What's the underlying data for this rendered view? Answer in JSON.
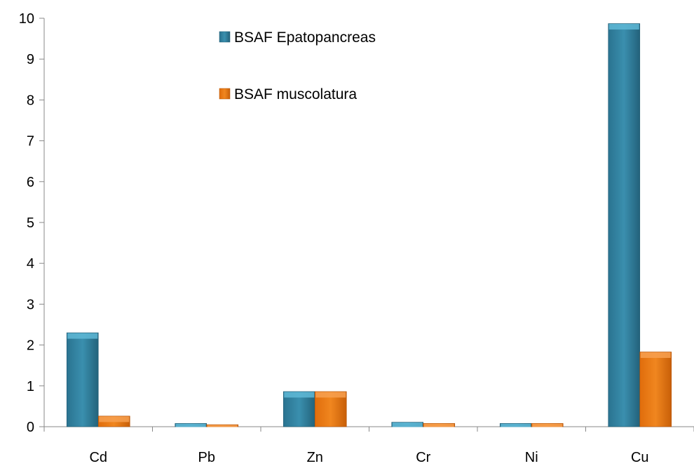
{
  "chart_data": {
    "type": "bar",
    "title": "",
    "xlabel": "",
    "ylabel": "",
    "categories": [
      "Cd",
      "Pb",
      "Zn",
      "Cr",
      "Ni",
      "Cu"
    ],
    "series": [
      {
        "name": "BSAF Epatopancreas",
        "values": [
          2.3,
          0.08,
          0.86,
          0.11,
          0.08,
          9.87
        ],
        "color": "#2E7F9E",
        "highlight": "#5FB8D6"
      },
      {
        "name": "BSAF muscolatura",
        "values": [
          0.26,
          0.05,
          0.86,
          0.08,
          0.08,
          1.83
        ],
        "color": "#E87511",
        "highlight": "#F7A050"
      }
    ],
    "ylim": [
      0,
      10
    ],
    "yticks": [
      0,
      1,
      2,
      3,
      4,
      5,
      6,
      7,
      8,
      9,
      10
    ],
    "grid": false,
    "legend_position": "top-center"
  }
}
